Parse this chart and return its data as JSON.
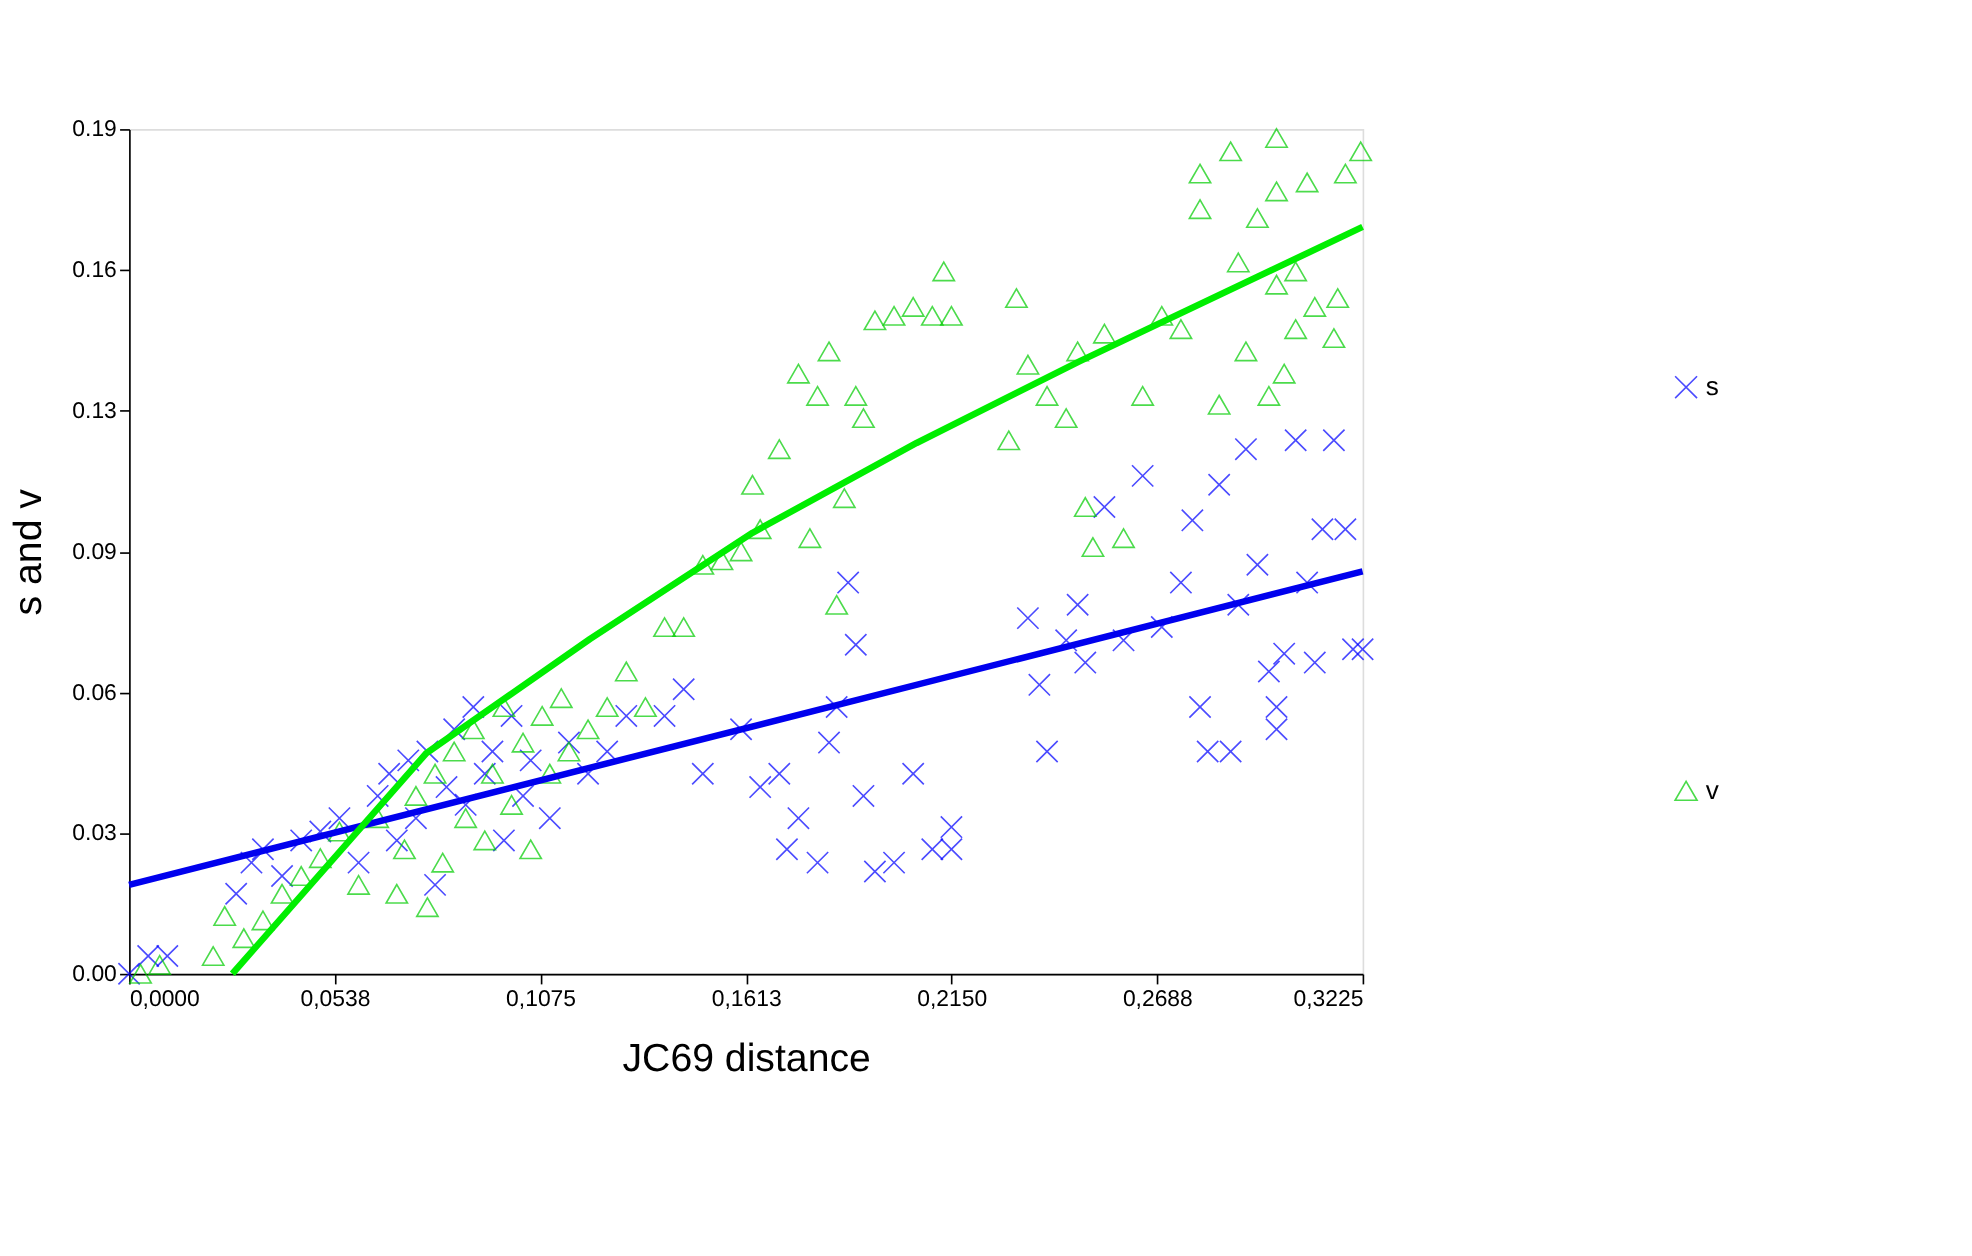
{
  "chart_data": {
    "type": "scatter",
    "xlabel": "JC69 distance",
    "ylabel": "s and v",
    "xlim": [
      0,
      0.3225
    ],
    "ylim": [
      0,
      0.19
    ],
    "xticks": [
      {
        "value": 0,
        "label": "0,0000"
      },
      {
        "value": 0.05375,
        "label": "0,0538"
      },
      {
        "value": 0.1075,
        "label": "0,1075"
      },
      {
        "value": 0.16125,
        "label": "0,1613"
      },
      {
        "value": 0.215,
        "label": "0,2150"
      },
      {
        "value": 0.26875,
        "label": "0,2688"
      },
      {
        "value": 0.3225,
        "label": "0,3225"
      }
    ],
    "yticks": [
      {
        "value": 0,
        "label": "0.00"
      },
      {
        "value": 0.031667,
        "label": "0.03"
      },
      {
        "value": 0.063333,
        "label": "0.06"
      },
      {
        "value": 0.095,
        "label": "0.09"
      },
      {
        "value": 0.126667,
        "label": "0.13"
      },
      {
        "value": 0.158333,
        "label": "0.16"
      },
      {
        "value": 0.19,
        "label": "0.19"
      }
    ],
    "grid": false,
    "legend": "right",
    "series": [
      {
        "name": "s",
        "type": "scatter",
        "marker": "cross",
        "color": "#0000ff",
        "x": [
          0.0,
          0.005,
          0.01,
          0.028,
          0.032,
          0.035,
          0.04,
          0.045,
          0.05,
          0.055,
          0.06,
          0.065,
          0.068,
          0.07,
          0.073,
          0.075,
          0.078,
          0.08,
          0.083,
          0.085,
          0.088,
          0.09,
          0.093,
          0.095,
          0.098,
          0.1,
          0.103,
          0.105,
          0.11,
          0.115,
          0.12,
          0.125,
          0.13,
          0.14,
          0.145,
          0.15,
          0.16,
          0.165,
          0.17,
          0.172,
          0.175,
          0.18,
          0.183,
          0.185,
          0.188,
          0.19,
          0.192,
          0.195,
          0.2,
          0.205,
          0.21,
          0.215,
          0.215,
          0.235,
          0.238,
          0.24,
          0.245,
          0.248,
          0.25,
          0.255,
          0.26,
          0.265,
          0.27,
          0.275,
          0.278,
          0.28,
          0.282,
          0.285,
          0.288,
          0.29,
          0.292,
          0.295,
          0.298,
          0.3,
          0.3,
          0.302,
          0.305,
          0.308,
          0.31,
          0.312,
          0.315,
          0.318,
          0.32,
          0.3225
        ],
        "values": [
          0.0,
          0.004,
          0.004,
          0.018,
          0.025,
          0.028,
          0.022,
          0.03,
          0.032,
          0.035,
          0.025,
          0.04,
          0.045,
          0.03,
          0.048,
          0.035,
          0.05,
          0.02,
          0.042,
          0.055,
          0.038,
          0.06,
          0.045,
          0.05,
          0.03,
          0.058,
          0.04,
          0.048,
          0.035,
          0.052,
          0.045,
          0.05,
          0.058,
          0.058,
          0.064,
          0.045,
          0.055,
          0.042,
          0.045,
          0.028,
          0.035,
          0.025,
          0.052,
          0.06,
          0.088,
          0.074,
          0.04,
          0.023,
          0.025,
          0.045,
          0.028,
          0.033,
          0.028,
          0.08,
          0.065,
          0.05,
          0.075,
          0.083,
          0.07,
          0.105,
          0.075,
          0.112,
          0.078,
          0.088,
          0.102,
          0.06,
          0.05,
          0.11,
          0.05,
          0.083,
          0.118,
          0.092,
          0.068,
          0.055,
          0.06,
          0.072,
          0.12,
          0.088,
          0.07,
          0.1,
          0.12,
          0.1,
          0.073,
          0.073
        ]
      },
      {
        "name": "v",
        "type": "scatter",
        "marker": "triangle",
        "color": "#00cc00",
        "x": [
          0.003,
          0.008,
          0.022,
          0.025,
          0.03,
          0.035,
          0.04,
          0.045,
          0.05,
          0.055,
          0.06,
          0.065,
          0.07,
          0.072,
          0.075,
          0.078,
          0.08,
          0.082,
          0.085,
          0.088,
          0.09,
          0.093,
          0.095,
          0.098,
          0.1,
          0.103,
          0.105,
          0.108,
          0.11,
          0.113,
          0.115,
          0.12,
          0.125,
          0.13,
          0.135,
          0.14,
          0.145,
          0.15,
          0.155,
          0.16,
          0.163,
          0.165,
          0.17,
          0.175,
          0.178,
          0.18,
          0.183,
          0.185,
          0.187,
          0.19,
          0.192,
          0.195,
          0.2,
          0.205,
          0.21,
          0.213,
          0.215,
          0.23,
          0.232,
          0.235,
          0.24,
          0.245,
          0.248,
          0.25,
          0.252,
          0.255,
          0.26,
          0.265,
          0.27,
          0.275,
          0.28,
          0.28,
          0.285,
          0.288,
          0.29,
          0.292,
          0.295,
          0.298,
          0.3,
          0.3,
          0.302,
          0.305,
          0.308,
          0.31,
          0.315,
          0.316,
          0.318,
          0.322,
          0.3,
          0.305
        ],
        "values": [
          0.0,
          0.002,
          0.004,
          0.013,
          0.008,
          0.012,
          0.018,
          0.022,
          0.026,
          0.032,
          0.02,
          0.035,
          0.018,
          0.028,
          0.04,
          0.015,
          0.045,
          0.025,
          0.05,
          0.035,
          0.055,
          0.03,
          0.045,
          0.06,
          0.038,
          0.052,
          0.028,
          0.058,
          0.045,
          0.062,
          0.05,
          0.055,
          0.06,
          0.068,
          0.06,
          0.078,
          0.078,
          0.092,
          0.093,
          0.095,
          0.11,
          0.1,
          0.118,
          0.135,
          0.098,
          0.13,
          0.14,
          0.083,
          0.107,
          0.13,
          0.125,
          0.147,
          0.148,
          0.15,
          0.148,
          0.158,
          0.148,
          0.12,
          0.152,
          0.137,
          0.13,
          0.125,
          0.14,
          0.105,
          0.096,
          0.144,
          0.098,
          0.13,
          0.148,
          0.145,
          0.18,
          0.172,
          0.128,
          0.185,
          0.16,
          0.14,
          0.17,
          0.13,
          0.188,
          0.176,
          0.135,
          0.158,
          0.178,
          0.15,
          0.143,
          0.152,
          0.18,
          0.185,
          0.155,
          0.145
        ]
      },
      {
        "type": "line",
        "color": "#0000ee",
        "x": [
          0,
          0.3225
        ],
        "values": [
          0.02,
          0.0905
        ]
      },
      {
        "type": "line",
        "color": "#00ee00",
        "x": [
          0.027,
          0.0777,
          0.1205,
          0.163,
          0.2059,
          0.2486,
          0.3225
        ],
        "values": [
          0.0,
          0.0496,
          0.0753,
          0.0992,
          0.1194,
          0.1378,
          0.168
        ]
      }
    ]
  }
}
